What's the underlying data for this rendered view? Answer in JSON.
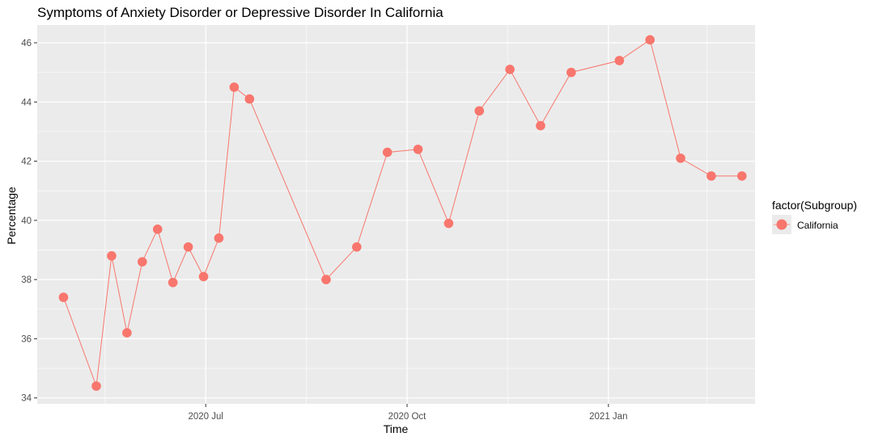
{
  "chart_data": {
    "type": "line",
    "title": "Symptoms of Anxiety Disorder or Depressive Disorder In California",
    "xlabel": "Time",
    "ylabel": "Percentage",
    "xlim": [
      "2020-04-15",
      "2021-03-09"
    ],
    "ylim": [
      33.8,
      46.6
    ],
    "x_ticks": [
      {
        "date": "2020-07-01",
        "label": "2020 Jul"
      },
      {
        "date": "2020-10-01",
        "label": "2020 Oct"
      },
      {
        "date": "2021-01-01",
        "label": "2021 Jan"
      }
    ],
    "x_minor_ticks": [
      "2020-05-16",
      "2020-08-16",
      "2020-11-16",
      "2021-02-15"
    ],
    "y_ticks": [
      34,
      36,
      38,
      40,
      42,
      44,
      46
    ],
    "grid": true,
    "legend": {
      "title": "factor(Subgroup)",
      "position": "right"
    },
    "series": [
      {
        "name": "California",
        "color": "#F8766D",
        "x": [
          "2020-04-27",
          "2020-05-12",
          "2020-05-19",
          "2020-05-26",
          "2020-06-02",
          "2020-06-09",
          "2020-06-16",
          "2020-06-23",
          "2020-06-30",
          "2020-07-07",
          "2020-07-14",
          "2020-07-21",
          "2020-08-25",
          "2020-09-08",
          "2020-09-22",
          "2020-10-06",
          "2020-10-20",
          "2020-11-03",
          "2020-11-17",
          "2020-12-01",
          "2020-12-15",
          "2021-01-06",
          "2021-01-20",
          "2021-02-03",
          "2021-02-17",
          "2021-03-03"
        ],
        "y": [
          37.4,
          34.4,
          38.8,
          36.2,
          38.6,
          39.7,
          37.9,
          39.1,
          38.1,
          39.4,
          44.5,
          44.1,
          38.0,
          39.1,
          42.3,
          42.4,
          39.9,
          43.7,
          45.1,
          43.2,
          45.0,
          45.4,
          46.1,
          42.1,
          41.5,
          41.5
        ]
      }
    ]
  }
}
